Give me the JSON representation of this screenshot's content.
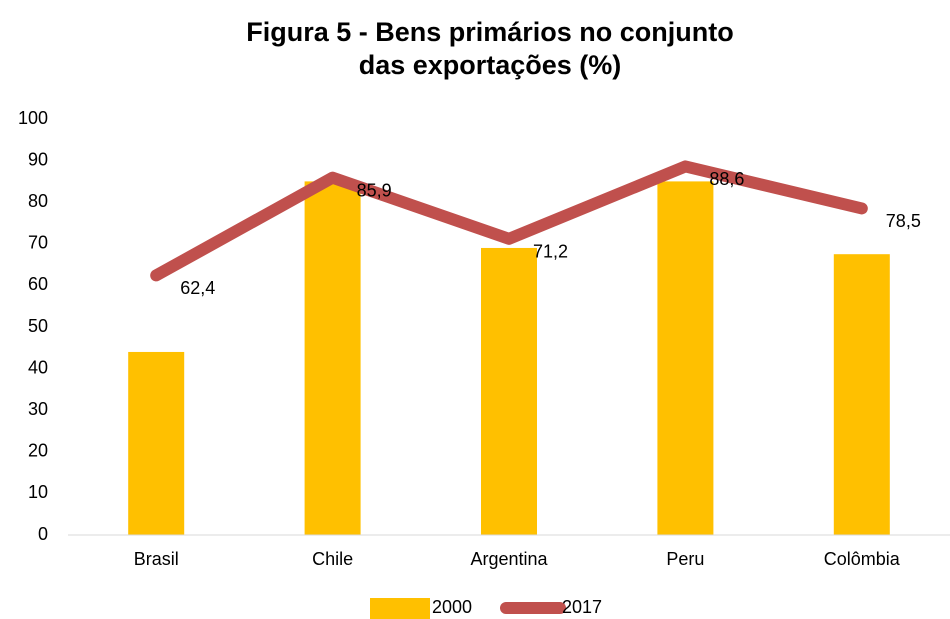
{
  "chart_data": {
    "type": "bar_line",
    "title": "Figura 5 - Bens primários no conjunto das exportações (%)",
    "categories": [
      "Brasil",
      "Chile",
      "Argentina",
      "Peru",
      "Colômbia"
    ],
    "series": [
      {
        "name": "2000",
        "type": "bar",
        "color": "#ffc000",
        "values": [
          44,
          85,
          69,
          85,
          67.5
        ]
      },
      {
        "name": "2017",
        "type": "line",
        "color": "#c0504d",
        "values": [
          62.4,
          85.9,
          71.2,
          88.6,
          78.5
        ],
        "value_labels": [
          "62,4",
          "85,9",
          "71,2",
          "88,6",
          "78,5"
        ]
      }
    ],
    "ylim": [
      0,
      100
    ],
    "yticks": [
      0,
      10,
      20,
      30,
      40,
      50,
      60,
      70,
      80,
      90,
      100
    ],
    "grid": false,
    "legend": "bottom"
  }
}
